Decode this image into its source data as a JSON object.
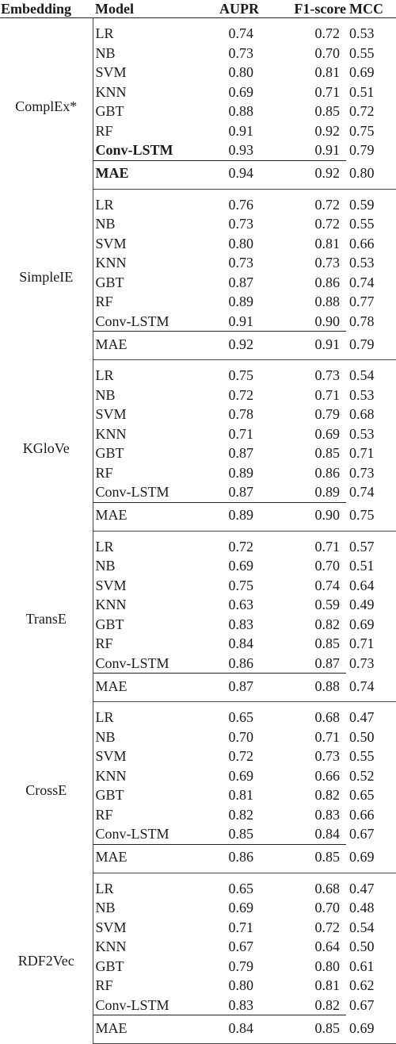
{
  "headers": {
    "embedding": "Embedding",
    "model": "Model",
    "aupr": "AUPR",
    "f1": "F1-score",
    "mcc": "MCC"
  },
  "groups": [
    {
      "name": "ComplEx*",
      "rows": [
        {
          "model": "LR",
          "aupr": "0.74",
          "f1": "0.72",
          "mcc": "0.53"
        },
        {
          "model": "NB",
          "aupr": "0.73",
          "f1": "0.70",
          "mcc": "0.55"
        },
        {
          "model": "SVM",
          "aupr": "0.80",
          "f1": "0.81",
          "mcc": "0.69"
        },
        {
          "model": "KNN",
          "aupr": "0.69",
          "f1": "0.71",
          "mcc": "0.51"
        },
        {
          "model": "GBT",
          "aupr": "0.88",
          "f1": "0.85",
          "mcc": "0.72"
        },
        {
          "model": "RF",
          "aupr": "0.91",
          "f1": "0.92",
          "mcc": "0.75"
        },
        {
          "model": "Conv-LSTM",
          "aupr": "0.93",
          "f1": "0.91",
          "mcc": "0.79"
        },
        {
          "model": "MAE",
          "aupr": "0.94",
          "f1": "0.92",
          "mcc": "0.80"
        }
      ]
    },
    {
      "name": "SimpleIE",
      "rows": [
        {
          "model": "LR",
          "aupr": "0.76",
          "f1": "0.72",
          "mcc": "0.59"
        },
        {
          "model": "NB",
          "aupr": "0.73",
          "f1": "0.72",
          "mcc": "0.55"
        },
        {
          "model": "SVM",
          "aupr": "0.80",
          "f1": "0.81",
          "mcc": "0.66"
        },
        {
          "model": "KNN",
          "aupr": "0.73",
          "f1": "0.73",
          "mcc": "0.53"
        },
        {
          "model": "GBT",
          "aupr": "0.87",
          "f1": "0.86",
          "mcc": "0.74"
        },
        {
          "model": "RF",
          "aupr": "0.89",
          "f1": "0.88",
          "mcc": "0.77"
        },
        {
          "model": "Conv-LSTM",
          "aupr": "0.91",
          "f1": "0.90",
          "mcc": "0.78"
        },
        {
          "model": "MAE",
          "aupr": "0.92",
          "f1": "0.91",
          "mcc": "0.79"
        }
      ]
    },
    {
      "name": "KGloVe",
      "rows": [
        {
          "model": "LR",
          "aupr": "0.75",
          "f1": "0.73",
          "mcc": "0.54"
        },
        {
          "model": "NB",
          "aupr": "0.72",
          "f1": "0.71",
          "mcc": "0.53"
        },
        {
          "model": "SVM",
          "aupr": "0.78",
          "f1": "0.79",
          "mcc": "0.68"
        },
        {
          "model": "KNN",
          "aupr": "0.71",
          "f1": "0.69",
          "mcc": "0.53"
        },
        {
          "model": "GBT",
          "aupr": "0.87",
          "f1": "0.85",
          "mcc": "0.71"
        },
        {
          "model": "RF",
          "aupr": "0.89",
          "f1": "0.86",
          "mcc": "0.73"
        },
        {
          "model": "Conv-LSTM",
          "aupr": "0.87",
          "f1": "0.89",
          "mcc": "0.74"
        },
        {
          "model": "MAE",
          "aupr": "0.89",
          "f1": "0.90",
          "mcc": "0.75"
        }
      ]
    },
    {
      "name": "TransE",
      "rows": [
        {
          "model": "LR",
          "aupr": "0.72",
          "f1": "0.71",
          "mcc": "0.57"
        },
        {
          "model": "NB",
          "aupr": "0.69",
          "f1": "0.70",
          "mcc": "0.51"
        },
        {
          "model": "SVM",
          "aupr": "0.75",
          "f1": "0.74",
          "mcc": "0.64"
        },
        {
          "model": "KNN",
          "aupr": "0.63",
          "f1": "0.59",
          "mcc": "0.49"
        },
        {
          "model": "GBT",
          "aupr": "0.83",
          "f1": "0.82",
          "mcc": "0.69"
        },
        {
          "model": "RF",
          "aupr": "0.84",
          "f1": "0.85",
          "mcc": "0.71"
        },
        {
          "model": "Conv-LSTM",
          "aupr": "0.86",
          "f1": "0.87",
          "mcc": "0.73"
        },
        {
          "model": "MAE",
          "aupr": "0.87",
          "f1": "0.88",
          "mcc": "0.74"
        }
      ]
    },
    {
      "name": "CrossE",
      "rows": [
        {
          "model": "LR",
          "aupr": "0.65",
          "f1": "0.68",
          "mcc": "0.47"
        },
        {
          "model": "NB",
          "aupr": "0.70",
          "f1": "0.71",
          "mcc": "0.50"
        },
        {
          "model": "SVM",
          "aupr": "0.72",
          "f1": "0.73",
          "mcc": "0.55"
        },
        {
          "model": "KNN",
          "aupr": "0.69",
          "f1": "0.66",
          "mcc": "0.52"
        },
        {
          "model": "GBT",
          "aupr": "0.81",
          "f1": "0.82",
          "mcc": "0.65"
        },
        {
          "model": "RF",
          "aupr": "0.82",
          "f1": "0.83",
          "mcc": "0.66"
        },
        {
          "model": "Conv-LSTM",
          "aupr": "0.85",
          "f1": "0.84",
          "mcc": "0.67"
        },
        {
          "model": "MAE",
          "aupr": "0.86",
          "f1": "0.85",
          "mcc": "0.69"
        }
      ]
    },
    {
      "name": "RDF2Vec",
      "rows": [
        {
          "model": "LR",
          "aupr": "0.65",
          "f1": "0.68",
          "mcc": "0.47"
        },
        {
          "model": "NB",
          "aupr": "0.69",
          "f1": "0.70",
          "mcc": "0.48"
        },
        {
          "model": "SVM",
          "aupr": "0.71",
          "f1": "0.72",
          "mcc": "0.54"
        },
        {
          "model": "KNN",
          "aupr": "0.67",
          "f1": "0.64",
          "mcc": "0.50"
        },
        {
          "model": "GBT",
          "aupr": "0.79",
          "f1": "0.80",
          "mcc": "0.61"
        },
        {
          "model": "RF",
          "aupr": "0.80",
          "f1": "0.81",
          "mcc": "0.62"
        },
        {
          "model": "Conv-LSTM",
          "aupr": "0.83",
          "f1": "0.82",
          "mcc": "0.67"
        },
        {
          "model": "MAE",
          "aupr": "0.84",
          "f1": "0.85",
          "mcc": "0.69"
        }
      ]
    }
  ]
}
